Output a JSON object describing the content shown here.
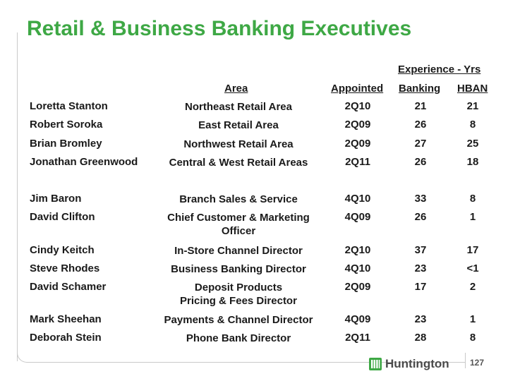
{
  "slide": {
    "title": "Retail & Business Banking Executives",
    "page_number": "127",
    "brand": "Huntington"
  },
  "table": {
    "group_header": "Experience - Yrs",
    "columns": {
      "area": "Area",
      "appointed": "Appointed",
      "banking": "Banking",
      "hban": "HBAN"
    },
    "rows": [
      {
        "name": "Loretta Stanton",
        "area": "Northeast Retail Area",
        "appointed": "2Q10",
        "banking": "21",
        "hban": "21"
      },
      {
        "name": "Robert Soroka",
        "area": "East Retail Area",
        "appointed": "2Q09",
        "banking": "26",
        "hban": "8"
      },
      {
        "name": "Brian Bromley",
        "area": "Northwest Retail Area",
        "appointed": "2Q09",
        "banking": "27",
        "hban": "25"
      },
      {
        "name": "Jonathan Greenwood",
        "area": "Central & West Retail Areas",
        "appointed": "2Q11",
        "banking": "26",
        "hban": "18"
      },
      {
        "name": "Jim Baron",
        "area": "Branch Sales & Service",
        "appointed": "4Q10",
        "banking": "33",
        "hban": "8"
      },
      {
        "name": "David Clifton",
        "area": "Chief Customer & Marketing Officer",
        "appointed": "4Q09",
        "banking": "26",
        "hban": "1"
      },
      {
        "name": "Cindy Keitch",
        "area": "In-Store Channel Director",
        "appointed": "2Q10",
        "banking": "37",
        "hban": "17"
      },
      {
        "name": "Steve Rhodes",
        "area": "Business Banking Director",
        "appointed": "4Q10",
        "banking": "23",
        "hban": "<1"
      },
      {
        "name": "David Schamer",
        "area": "Deposit Products Pricing & Fees Director",
        "appointed": "2Q09",
        "banking": "17",
        "hban": "2"
      },
      {
        "name": "Mark Sheehan",
        "area": "Payments & Channel Director",
        "appointed": "4Q09",
        "banking": "23",
        "hban": "1"
      },
      {
        "name": "Deborah Stein",
        "area": "Phone Bank Director",
        "appointed": "2Q11",
        "banking": "28",
        "hban": "8"
      }
    ]
  },
  "colors": {
    "title": "#3ea845",
    "logo_mark": "#3ea845",
    "frame": "#c9c9c9"
  },
  "icons": {
    "logo": "huntington-logo-icon"
  }
}
